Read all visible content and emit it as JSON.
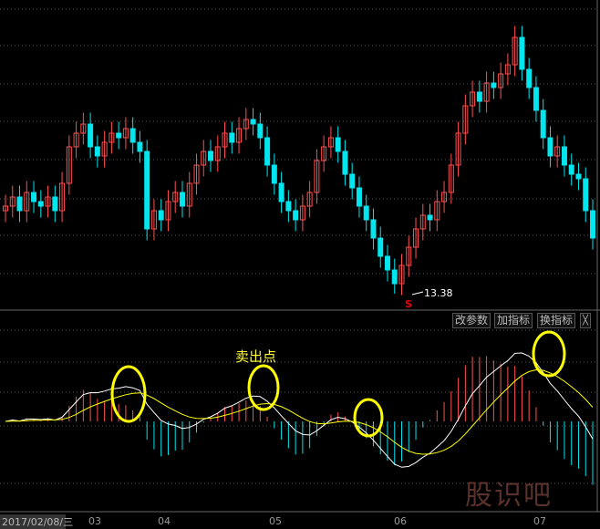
{
  "chart_data": {
    "type": "candlestick",
    "indicator": "MACD",
    "close": [
      15.3,
      15.5,
      15.2,
      15.6,
      15.4,
      15.3,
      15.5,
      15.2,
      15.8,
      16.6,
      16.9,
      17.1,
      16.6,
      16.4,
      16.7,
      16.9,
      16.8,
      17.0,
      16.7,
      16.5,
      14.8,
      15.2,
      15.0,
      15.4,
      15.6,
      15.3,
      15.8,
      16.2,
      16.5,
      16.3,
      16.6,
      16.9,
      16.7,
      17.0,
      17.2,
      17.1,
      16.8,
      16.2,
      15.8,
      15.4,
      15.2,
      15.0,
      15.3,
      15.6,
      16.3,
      16.6,
      16.8,
      16.5,
      16.0,
      15.7,
      15.3,
      15.0,
      14.6,
      14.2,
      13.9,
      13.6,
      14.0,
      14.4,
      14.8,
      15.1,
      15.0,
      15.4,
      15.6,
      16.2,
      16.9,
      17.5,
      17.8,
      17.6,
      18.0,
      17.9,
      18.2,
      18.4,
      19.0,
      18.3,
      17.9,
      17.4,
      16.8,
      16.4,
      16.6,
      16.2,
      16.0,
      15.9,
      15.2,
      14.6
    ],
    "low_marker": "13.38",
    "sell_signal": "S",
    "x_tick_labels": [
      "03",
      "04",
      "05",
      "06",
      "07"
    ],
    "cursor_date": "2017/02/08/三",
    "colors": {
      "up": "#ff5050",
      "down": "#00e5ee",
      "dif": "#ffffff",
      "dea": "#ffff00",
      "highlight": "#ffff00"
    }
  },
  "annotation": {
    "sell_point": "卖出点"
  },
  "buttons": {
    "edit_params": "改参数",
    "add_indicator": "加指标",
    "switch_indicator": "换指标",
    "close": "╳"
  },
  "watermark": "股识吧"
}
